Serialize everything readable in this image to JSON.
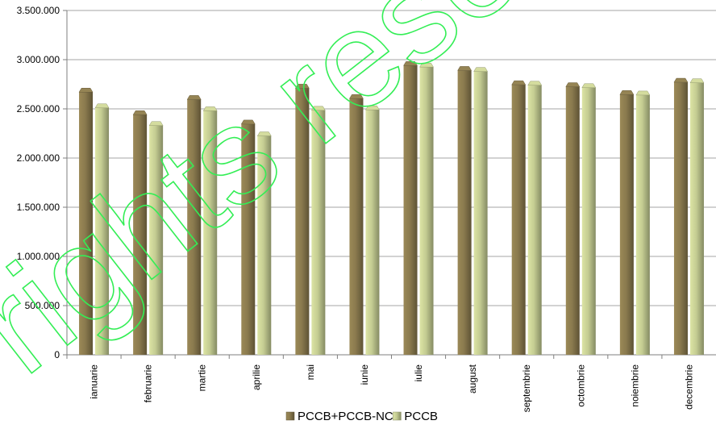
{
  "chart_data": {
    "type": "bar",
    "categories": [
      "ianuarie",
      "februarie",
      "martie",
      "aprilie",
      "mai",
      "iunie",
      "iulie",
      "august",
      "septembrie",
      "octombrie",
      "noiembrie",
      "decembrie"
    ],
    "series": [
      {
        "name": "PCCB+PCCB-NC",
        "color": "#8a7a4e",
        "values": [
          2670000,
          2440000,
          2595000,
          2345000,
          2710000,
          2605000,
          2940000,
          2890000,
          2745000,
          2725000,
          2645000,
          2770000
        ]
      },
      {
        "name": "PCCB",
        "color": "#c4cc92",
        "values": [
          2510000,
          2330000,
          2480000,
          2225000,
          2485000,
          2490000,
          2925000,
          2880000,
          2740000,
          2715000,
          2640000,
          2765000
        ]
      }
    ],
    "ylim": [
      0,
      3500000
    ],
    "yticks": [
      "0",
      "500.000",
      "1.000.000",
      "1.500.000",
      "2.000.000",
      "2.500.000",
      "3.000.000",
      "3.500.000"
    ],
    "grid": true,
    "legend_position": "bottom",
    "watermark": "rights reserved"
  }
}
